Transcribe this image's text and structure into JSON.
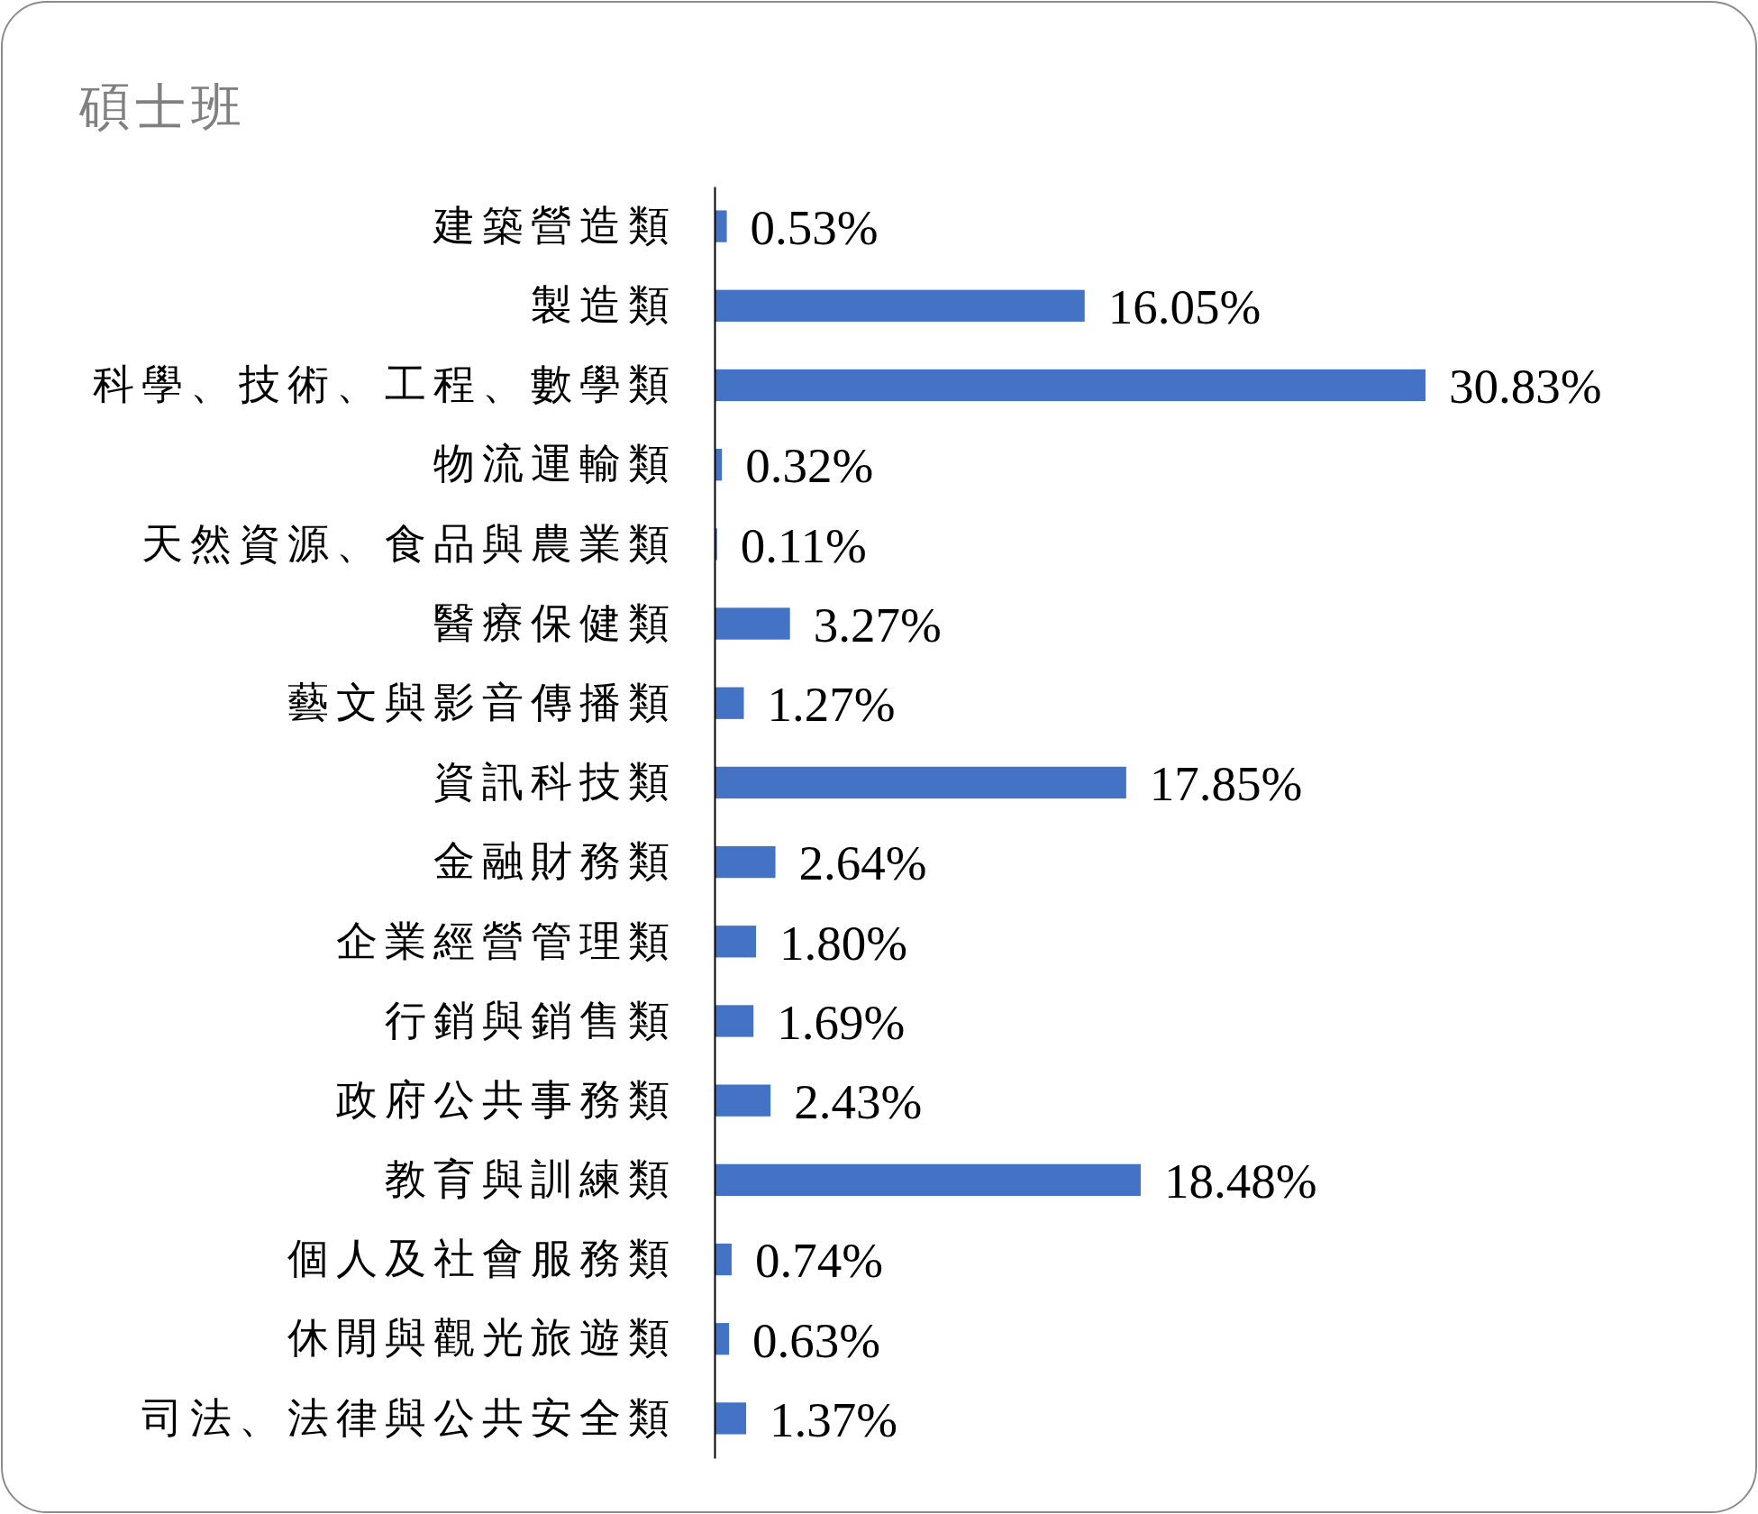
{
  "chart_data": {
    "type": "bar",
    "orientation": "horizontal",
    "title": "碩士班",
    "categories": [
      "建築營造類",
      "製造類",
      "科學、技術、工程、數學類",
      "物流運輸類",
      "天然資源、食品與農業類",
      "醫療保健類",
      "藝文與影音傳播類",
      "資訊科技類",
      "金融財務類",
      "企業經營管理類",
      "行銷與銷售類",
      "政府公共事務類",
      "教育與訓練類",
      "個人及社會服務類",
      "休閒與觀光旅遊類",
      "司法、法律與公共安全類"
    ],
    "values": [
      0.53,
      16.05,
      30.83,
      0.32,
      0.11,
      3.27,
      1.27,
      17.85,
      2.64,
      1.8,
      1.69,
      2.43,
      18.48,
      0.74,
      0.63,
      1.37
    ],
    "value_labels": [
      "0.53%",
      "16.05%",
      "30.83%",
      "0.32%",
      "0.11%",
      "3.27%",
      "1.27%",
      "17.85%",
      "2.64%",
      "1.80%",
      "1.69%",
      "2.43%",
      "18.48%",
      "0.74%",
      "0.63%",
      "1.37%"
    ],
    "color": "#4472c4",
    "tick_labels": "y"
  }
}
